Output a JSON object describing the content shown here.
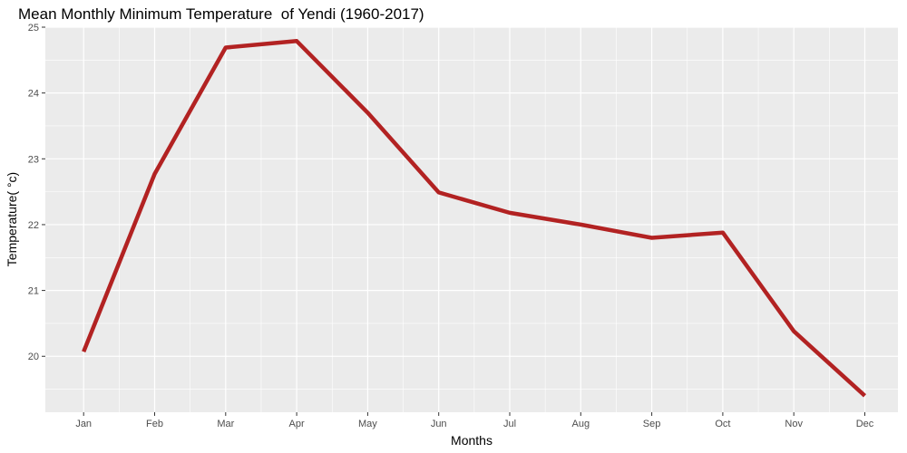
{
  "chart_data": {
    "type": "line",
    "title": "Mean Monthly Minimum Temperature  of Yendi (1960-2017)",
    "xlabel": "Months",
    "ylabel": "Temperature( °c)",
    "categories": [
      "Jan",
      "Feb",
      "Mar",
      "Apr",
      "May",
      "Jun",
      "Jul",
      "Aug",
      "Sep",
      "Oct",
      "Nov",
      "Dec"
    ],
    "series": [
      {
        "values": [
          20.07,
          22.77,
          24.69,
          24.79,
          23.7,
          22.49,
          22.18,
          22.0,
          21.8,
          21.88,
          20.38,
          19.4
        ]
      }
    ],
    "ylim": [
      19.15,
      25.0
    ],
    "yticks": [
      20,
      21,
      22,
      23,
      24,
      25
    ],
    "grid": true,
    "line_color": "#b22222",
    "panel_color": "#ebebeb"
  }
}
